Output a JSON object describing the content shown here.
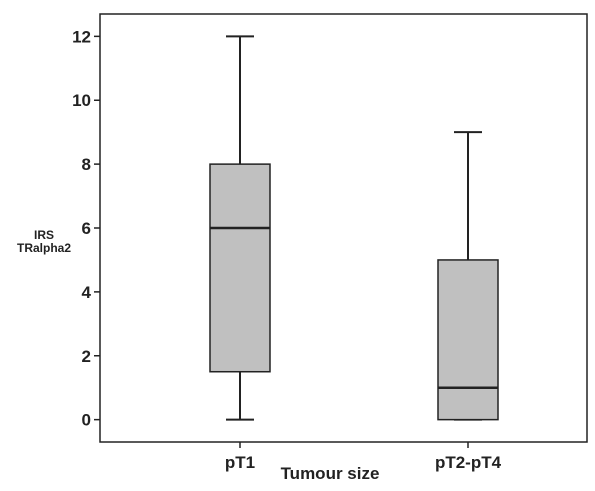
{
  "chart_data": {
    "type": "box",
    "categories": [
      "pT1",
      "pT2-pT4"
    ],
    "boxes": [
      {
        "name": "pT1",
        "min": 0,
        "q1": 1.5,
        "median": 6,
        "q3": 8,
        "max": 12
      },
      {
        "name": "pT2-pT4",
        "min": 0,
        "q1": 0,
        "median": 1,
        "q3": 5,
        "max": 9
      }
    ],
    "xlabel": "Tumour size",
    "ylabel_lines": [
      "IRS",
      "TRalpha2"
    ],
    "yticks": [
      0,
      2,
      4,
      6,
      8,
      10,
      12
    ],
    "ylim": [
      -0.7,
      12.7
    ],
    "grid": false,
    "colors": {
      "box_fill": "#c0c0c0",
      "line": "#222222"
    }
  }
}
